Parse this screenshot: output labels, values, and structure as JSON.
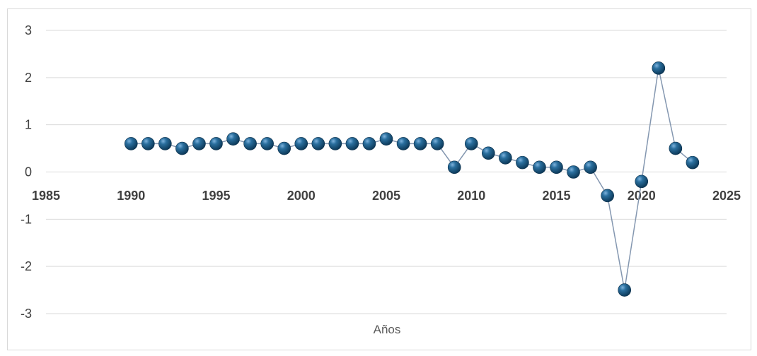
{
  "chart_data": {
    "type": "scatter",
    "title": "",
    "xlabel": "Años",
    "ylabel": "",
    "xlim": [
      1985,
      2025
    ],
    "ylim": [
      -3,
      3
    ],
    "xticks": [
      1985,
      1990,
      1995,
      2000,
      2005,
      2010,
      2015,
      2020,
      2025
    ],
    "yticks": [
      3,
      2,
      1,
      0,
      -1,
      -2,
      -3
    ],
    "grid": true,
    "legend": "none",
    "connect_points": true,
    "colors": {
      "marker": "#1f5c85",
      "marker_highlight": "#6fa8d6",
      "line": "#8497b0",
      "grid": "#d9d9d9",
      "text": "#404040"
    },
    "series": [
      {
        "x": [
          1990,
          1991,
          1992,
          1993,
          1994,
          1995,
          1996,
          1997,
          1998,
          1999,
          2000,
          2001,
          2002,
          2003,
          2004,
          2005,
          2006,
          2007,
          2008,
          2009,
          2010,
          2011,
          2012,
          2013,
          2014,
          2015,
          2016,
          2017,
          2018,
          2019,
          2020,
          2021,
          2022,
          2023
        ],
        "y": [
          0.6,
          0.6,
          0.6,
          0.5,
          0.6,
          0.6,
          0.7,
          0.6,
          0.6,
          0.5,
          0.6,
          0.6,
          0.6,
          0.6,
          0.6,
          0.7,
          0.6,
          0.6,
          0.6,
          0.1,
          0.6,
          0.4,
          0.3,
          0.2,
          0.1,
          0.1,
          0.0,
          0.1,
          -0.5,
          -2.5,
          -0.2,
          2.2,
          0.5,
          0.2
        ]
      }
    ]
  }
}
